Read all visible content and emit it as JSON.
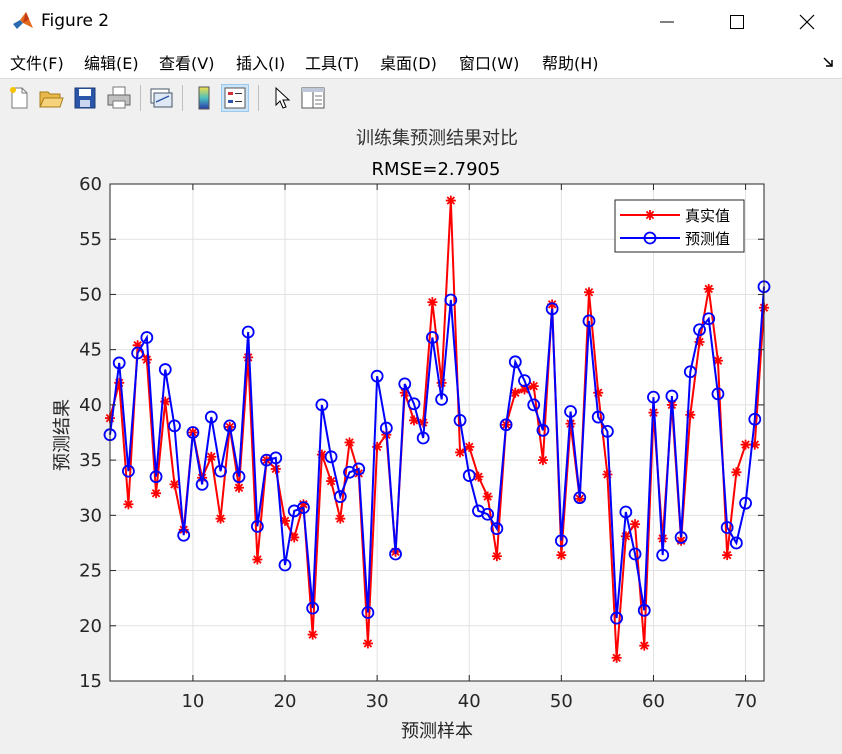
{
  "window": {
    "title": "Figure 2",
    "controls": [
      "minimize",
      "maximize",
      "close"
    ]
  },
  "menu": {
    "items": [
      "文件(F)",
      "编辑(E)",
      "查看(V)",
      "插入(I)",
      "工具(T)",
      "桌面(D)",
      "窗口(W)",
      "帮助(H)"
    ]
  },
  "toolbar": {
    "buttons": [
      "new-figure-icon",
      "open-file-icon",
      "save-icon",
      "print-icon",
      "link-plot-icon",
      "colorbar-icon",
      "legend-icon",
      "pointer-icon",
      "property-editor-icon"
    ],
    "active": "legend-icon"
  },
  "chart_data": {
    "type": "line",
    "title": "训练集预测结果对比",
    "subtitle": "RMSE=2.7905",
    "xlabel": "预测样本",
    "ylabel": "预测结果",
    "xlim": [
      1,
      72
    ],
    "ylim": [
      15,
      60
    ],
    "xticks": [
      10,
      20,
      30,
      40,
      50,
      60,
      70
    ],
    "yticks": [
      15,
      20,
      25,
      30,
      35,
      40,
      45,
      50,
      55,
      60
    ],
    "grid": true,
    "legend_position": "top-right",
    "series": [
      {
        "name": "真实值",
        "color": "#ff0000",
        "marker": "asterisk",
        "values": [
          38.8,
          42.0,
          31.0,
          45.4,
          44.1,
          32.0,
          40.3,
          32.8,
          28.7,
          37.5,
          33.4,
          35.3,
          29.7,
          38.0,
          32.5,
          44.3,
          26.0,
          35.0,
          34.2,
          29.5,
          28.0,
          31.0,
          19.2,
          35.5,
          33.1,
          29.7,
          36.6,
          33.8,
          18.4,
          36.2,
          37.3,
          26.7,
          41.1,
          38.6,
          38.4,
          49.3,
          42.0,
          58.5,
          35.7,
          36.2,
          33.5,
          31.7,
          26.3,
          38.2,
          41.1,
          41.4,
          41.7,
          35.0,
          49.1,
          26.4,
          38.3,
          31.5,
          50.2,
          41.1,
          33.7,
          17.1,
          28.1,
          29.2,
          18.2,
          39.3,
          27.9,
          40.0,
          27.7,
          39.1,
          45.7,
          50.5,
          44.0,
          26.4,
          33.9,
          36.4,
          36.4,
          48.8
        ]
      },
      {
        "name": "预测值",
        "color": "#0000ff",
        "marker": "circle",
        "values": [
          37.3,
          43.8,
          34.0,
          44.7,
          46.1,
          33.5,
          43.2,
          38.1,
          28.2,
          37.5,
          32.8,
          38.9,
          34.0,
          38.1,
          33.5,
          46.6,
          29.0,
          35.0,
          35.2,
          25.5,
          30.4,
          30.7,
          21.6,
          40.0,
          35.3,
          31.7,
          33.9,
          34.2,
          21.2,
          42.6,
          37.9,
          26.5,
          41.9,
          40.1,
          37.0,
          46.1,
          40.5,
          49.5,
          38.6,
          33.6,
          30.4,
          30.1,
          28.8,
          38.2,
          43.9,
          42.2,
          40.0,
          37.7,
          48.7,
          27.7,
          39.4,
          31.6,
          47.6,
          38.9,
          37.6,
          20.7,
          30.3,
          26.5,
          21.4,
          40.7,
          26.4,
          40.8,
          28.0,
          43.0,
          46.8,
          47.8,
          41.0,
          28.9,
          27.5,
          31.1,
          38.7,
          50.7
        ]
      }
    ]
  }
}
